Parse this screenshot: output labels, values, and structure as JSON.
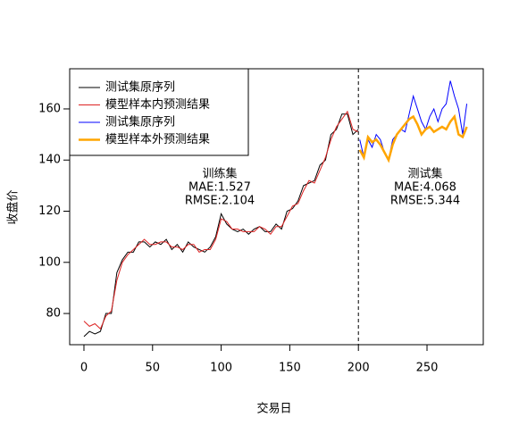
{
  "chart_data": {
    "type": "line",
    "xlabel": "交易日",
    "ylabel": "收盘价",
    "xlim": [
      -10.4,
      291
    ],
    "ylim": [
      67.8,
      175.7
    ],
    "xticks": [
      0,
      50,
      100,
      150,
      200,
      250
    ],
    "yticks": [
      80,
      100,
      120,
      140,
      160
    ],
    "split_x": 200,
    "legend": "top-left",
    "annotations": [
      "训练集",
      "MAE:1.527",
      "RMSE:2.104",
      "测试集",
      "MAE:4.068",
      "RMSE:5.344"
    ],
    "series": [
      {
        "name": "测试集原序列",
        "color": "#000000",
        "x": [
          0,
          4,
          8,
          12,
          16,
          20,
          24,
          28,
          32,
          36,
          40,
          44,
          48,
          52,
          56,
          60,
          64,
          68,
          72,
          76,
          80,
          84,
          88,
          92,
          96,
          100,
          104,
          108,
          112,
          116,
          120,
          124,
          128,
          132,
          136,
          140,
          144,
          148,
          152,
          156,
          160,
          164,
          168,
          172,
          176,
          180,
          184,
          188,
          192,
          196,
          200
        ],
        "values": [
          71,
          73,
          72,
          73,
          80,
          80,
          96,
          101,
          104,
          104,
          108,
          108,
          106,
          108,
          107,
          109,
          105,
          107,
          104,
          108,
          106,
          105,
          104,
          106,
          110,
          119,
          115,
          113,
          112,
          113,
          111,
          113,
          114,
          112,
          112,
          115,
          113,
          120,
          121,
          124,
          130,
          131,
          132,
          138,
          140,
          150,
          152,
          158,
          158,
          150,
          152
        ]
      },
      {
        "name": "模型样本内预测结果",
        "color": "#dd2222",
        "x": [
          0,
          4,
          8,
          12,
          16,
          20,
          24,
          28,
          32,
          36,
          40,
          44,
          48,
          52,
          56,
          60,
          64,
          68,
          72,
          76,
          80,
          84,
          88,
          92,
          96,
          100,
          104,
          108,
          112,
          116,
          120,
          124,
          128,
          132,
          136,
          140,
          144,
          148,
          152,
          156,
          160,
          164,
          168,
          172,
          176,
          180,
          184,
          188,
          192,
          196,
          200
        ],
        "values": [
          77,
          75,
          76,
          74,
          79,
          81,
          93,
          100,
          103,
          105,
          107,
          109,
          107,
          107,
          108,
          108,
          106,
          106,
          105,
          107,
          107,
          104,
          105,
          105,
          109,
          117,
          116,
          113,
          113,
          112,
          112,
          112,
          114,
          113,
          111,
          114,
          114,
          118,
          122,
          123,
          128,
          132,
          131,
          136,
          141,
          148,
          153,
          156,
          159,
          152,
          151
        ]
      },
      {
        "name": "测试集原序列",
        "color": "#0000ff",
        "x": [
          201,
          204,
          207,
          210,
          213,
          216,
          219,
          222,
          225,
          228,
          231,
          234,
          237,
          240,
          243,
          246,
          249,
          252,
          255,
          258,
          261,
          264,
          267,
          270,
          273,
          276,
          279
        ],
        "values": [
          148,
          141,
          148,
          145,
          150,
          148,
          143,
          140,
          148,
          150,
          152,
          151,
          158,
          165,
          160,
          155,
          152,
          157,
          160,
          155,
          160,
          162,
          171,
          165,
          160,
          150,
          162
        ]
      },
      {
        "name": "模型样本外预测结果",
        "color": "#ffa500",
        "x": [
          201,
          204,
          207,
          210,
          213,
          216,
          219,
          222,
          225,
          228,
          231,
          234,
          237,
          240,
          243,
          246,
          249,
          252,
          255,
          258,
          261,
          264,
          267,
          270,
          273,
          276,
          279
        ],
        "values": [
          144,
          141,
          149,
          147,
          148,
          146,
          143,
          140,
          146,
          150,
          152,
          154,
          156,
          157,
          154,
          150,
          152,
          153,
          151,
          152,
          153,
          152,
          155,
          157,
          150,
          149,
          153
        ]
      }
    ]
  }
}
